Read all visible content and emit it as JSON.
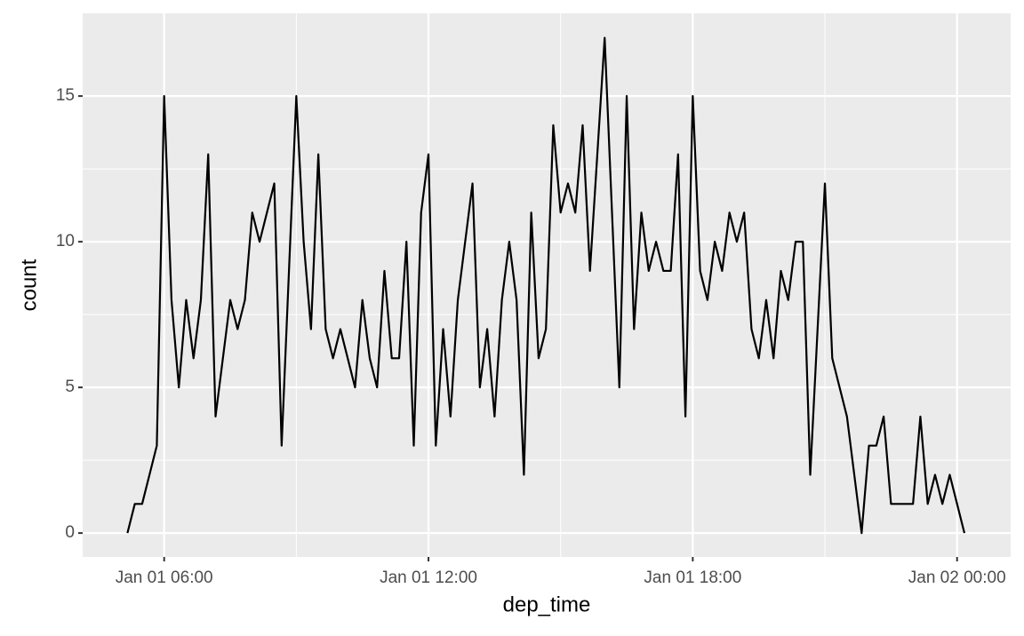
{
  "chart_data": {
    "type": "line",
    "x_label": "dep_time",
    "y_label": "count",
    "x": [
      "Jan 01 05:10",
      "Jan 01 05:20",
      "Jan 01 05:30",
      "Jan 01 05:40",
      "Jan 01 05:50",
      "Jan 01 06:00",
      "Jan 01 06:10",
      "Jan 01 06:20",
      "Jan 01 06:30",
      "Jan 01 06:40",
      "Jan 01 06:50",
      "Jan 01 07:00",
      "Jan 01 07:10",
      "Jan 01 07:20",
      "Jan 01 07:30",
      "Jan 01 07:40",
      "Jan 01 07:50",
      "Jan 01 08:00",
      "Jan 01 08:10",
      "Jan 01 08:20",
      "Jan 01 08:30",
      "Jan 01 08:40",
      "Jan 01 08:50",
      "Jan 01 09:00",
      "Jan 01 09:10",
      "Jan 01 09:20",
      "Jan 01 09:30",
      "Jan 01 09:40",
      "Jan 01 09:50",
      "Jan 01 10:00",
      "Jan 01 10:10",
      "Jan 01 10:20",
      "Jan 01 10:30",
      "Jan 01 10:40",
      "Jan 01 10:50",
      "Jan 01 11:00",
      "Jan 01 11:10",
      "Jan 01 11:20",
      "Jan 01 11:30",
      "Jan 01 11:40",
      "Jan 01 11:50",
      "Jan 01 12:00",
      "Jan 01 12:10",
      "Jan 01 12:20",
      "Jan 01 12:30",
      "Jan 01 12:40",
      "Jan 01 12:50",
      "Jan 01 13:00",
      "Jan 01 13:10",
      "Jan 01 13:20",
      "Jan 01 13:30",
      "Jan 01 13:40",
      "Jan 01 13:50",
      "Jan 01 14:00",
      "Jan 01 14:10",
      "Jan 01 14:20",
      "Jan 01 14:30",
      "Jan 01 14:40",
      "Jan 01 14:50",
      "Jan 01 15:00",
      "Jan 01 15:10",
      "Jan 01 15:20",
      "Jan 01 15:30",
      "Jan 01 15:40",
      "Jan 01 15:50",
      "Jan 01 16:00",
      "Jan 01 16:10",
      "Jan 01 16:20",
      "Jan 01 16:30",
      "Jan 01 16:40",
      "Jan 01 16:50",
      "Jan 01 17:00",
      "Jan 01 17:10",
      "Jan 01 17:20",
      "Jan 01 17:30",
      "Jan 01 17:40",
      "Jan 01 17:50",
      "Jan 01 18:00",
      "Jan 01 18:10",
      "Jan 01 18:20",
      "Jan 01 18:30",
      "Jan 01 18:40",
      "Jan 01 18:50",
      "Jan 01 19:00",
      "Jan 01 19:10",
      "Jan 01 19:20",
      "Jan 01 19:30",
      "Jan 01 19:40",
      "Jan 01 19:50",
      "Jan 01 20:00",
      "Jan 01 20:10",
      "Jan 01 20:20",
      "Jan 01 20:30",
      "Jan 01 20:40",
      "Jan 01 20:50",
      "Jan 01 21:00",
      "Jan 01 21:10",
      "Jan 01 21:20",
      "Jan 01 21:30",
      "Jan 01 21:40",
      "Jan 01 21:50",
      "Jan 01 22:00",
      "Jan 01 22:10",
      "Jan 01 22:20",
      "Jan 01 22:30",
      "Jan 01 22:40",
      "Jan 01 22:50",
      "Jan 01 23:00",
      "Jan 01 23:10",
      "Jan 01 23:20",
      "Jan 01 23:30",
      "Jan 01 23:40",
      "Jan 01 23:50",
      "Jan 02 00:00",
      "Jan 02 00:10"
    ],
    "values": [
      0,
      1,
      1,
      2,
      3,
      15,
      8,
      5,
      8,
      6,
      8,
      13,
      4,
      6,
      8,
      7,
      8,
      11,
      10,
      11,
      12,
      3,
      9,
      15,
      10,
      7,
      13,
      7,
      6,
      7,
      6,
      5,
      8,
      6,
      5,
      9,
      6,
      6,
      10,
      3,
      11,
      13,
      3,
      7,
      4,
      8,
      10,
      12,
      5,
      7,
      4,
      8,
      10,
      8,
      2,
      11,
      6,
      7,
      14,
      11,
      12,
      11,
      14,
      9,
      13,
      17,
      11,
      5,
      15,
      7,
      11,
      9,
      10,
      9,
      9,
      13,
      4,
      15,
      9,
      8,
      10,
      9,
      11,
      10,
      11,
      7,
      6,
      8,
      6,
      9,
      8,
      10,
      10,
      2,
      7,
      12,
      6,
      5,
      4,
      2,
      0,
      3,
      3,
      4,
      1,
      1,
      1,
      1,
      4,
      1,
      2,
      1,
      2,
      1,
      0
    ],
    "color": "#000000",
    "xlim": [
      "Jan 01 04:09",
      "Jan 02 01:13"
    ],
    "xticks": [
      "Jan 01 06:00",
      "Jan 01 12:00",
      "Jan 01 18:00",
      "Jan 02 00:00"
    ],
    "ylim": [
      -0.82,
      17.84
    ],
    "yticks": [
      0,
      5,
      10,
      15
    ],
    "grid": true
  }
}
